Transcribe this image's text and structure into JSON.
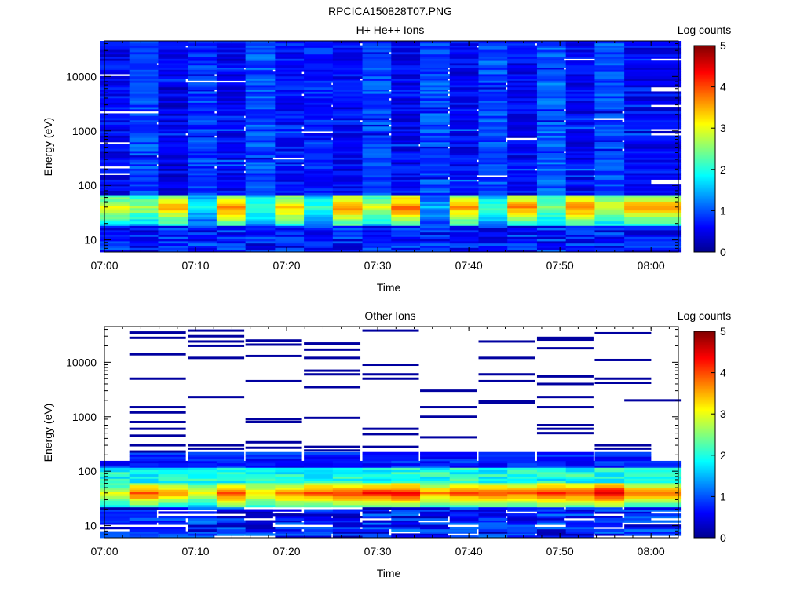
{
  "figure": {
    "title": "RPCICA150828T07.PNG"
  },
  "chart_data": [
    {
      "type": "heatmap",
      "title": "H+ He++ Ions",
      "xlabel": "Time",
      "ylabel": "Energy (eV)",
      "x_range": [
        "07:00",
        "08:03"
      ],
      "y_range": [
        6,
        45000
      ],
      "y_scale": "log",
      "x_ticks": [
        "07:00",
        "07:10",
        "07:20",
        "07:30",
        "07:40",
        "07:50",
        "08:00"
      ],
      "y_ticks": [
        "10",
        "100",
        "1000",
        "10000"
      ],
      "colorbar": {
        "label": "Log counts",
        "range": [
          0,
          5
        ],
        "ticks": [
          "0",
          "1",
          "2",
          "3",
          "4",
          "5"
        ],
        "colormap": "jet"
      },
      "time_bins": [
        "07:02:40",
        "07:05:50",
        "07:09:00",
        "07:12:15",
        "07:15:25",
        "07:18:35",
        "07:21:50",
        "07:25:00",
        "07:28:10",
        "07:31:25",
        "07:34:35",
        "07:37:45",
        "07:41:00",
        "07:44:10",
        "07:47:20",
        "07:50:35",
        "07:53:45",
        "07:56:55",
        "08:00:10"
      ],
      "peak_energy_eV": 40,
      "peak_log_counts": [
        3.0,
        2.7,
        3.5,
        1.8,
        3.8,
        2.3,
        3.4,
        2.1,
        3.8,
        2.9,
        3.9,
        1.5,
        3.6,
        2.2,
        3.7,
        2.6,
        3.8,
        3.0,
        3.6
      ],
      "background_log_counts": [
        0.6,
        1.0,
        0.5,
        0.9,
        0.6,
        1.0,
        0.7,
        0.8,
        0.6,
        1.0,
        0.6,
        1.0,
        0.6,
        1.0,
        0.6,
        1.1,
        0.6,
        1.0,
        0.6
      ]
    },
    {
      "type": "heatmap",
      "title": "Other Ions",
      "xlabel": "Time",
      "ylabel": "Energy (eV)",
      "x_range": [
        "07:00",
        "08:03"
      ],
      "y_range": [
        6,
        45000
      ],
      "y_scale": "log",
      "x_ticks": [
        "07:00",
        "07:10",
        "07:20",
        "07:30",
        "07:40",
        "07:50",
        "08:00"
      ],
      "y_ticks": [
        "10",
        "100",
        "1000",
        "10000"
      ],
      "colorbar": {
        "label": "Log counts",
        "range": [
          0,
          5
        ],
        "ticks": [
          "0",
          "1",
          "2",
          "3",
          "4",
          "5"
        ],
        "colormap": "jet"
      },
      "time_bins": [
        "07:02:40",
        "07:05:50",
        "07:09:00",
        "07:12:15",
        "07:15:25",
        "07:18:35",
        "07:21:50",
        "07:25:00",
        "07:28:10",
        "07:31:25",
        "07:34:35",
        "07:37:45",
        "07:41:00",
        "07:44:10",
        "07:47:20",
        "07:50:35",
        "07:53:45",
        "07:56:55",
        "08:00:10"
      ],
      "peak_energy_eV": 40,
      "peak_log_counts": [
        3.0,
        4.0,
        3.6,
        3.0,
        4.1,
        3.4,
        3.8,
        4.0,
        4.2,
        4.3,
        4.4,
        3.7,
        4.0,
        4.0,
        3.9,
        4.3,
        4.1,
        4.6,
        3.8
      ],
      "high_energy_lines_eV": [
        [],
        [
          35000,
          28000,
          14000,
          5000,
          1500,
          1200,
          800,
          600,
          450,
          300,
          230
        ],
        [],
        [
          38000,
          30000,
          24000,
          20000,
          12000,
          2300,
          300,
          260
        ],
        [],
        [
          25000,
          21000,
          13000,
          4500,
          900,
          800,
          340,
          270
        ],
        [],
        [
          22000,
          17000,
          12000,
          7000,
          6000,
          3500,
          950,
          280,
          240
        ],
        [],
        [
          38000,
          9000,
          6000,
          5000,
          600,
          480,
          280
        ],
        [],
        [
          3000,
          1500,
          1000,
          420
        ],
        [],
        [
          24000,
          12000,
          6000,
          4500,
          1900,
          1800
        ],
        [],
        [
          28000,
          26000,
          18000,
          5500,
          4000,
          2300,
          1500,
          700,
          600,
          500
        ],
        [],
        [
          34000,
          11000,
          5000,
          4200,
          300,
          260
        ],
        [
          2000
        ]
      ]
    }
  ]
}
